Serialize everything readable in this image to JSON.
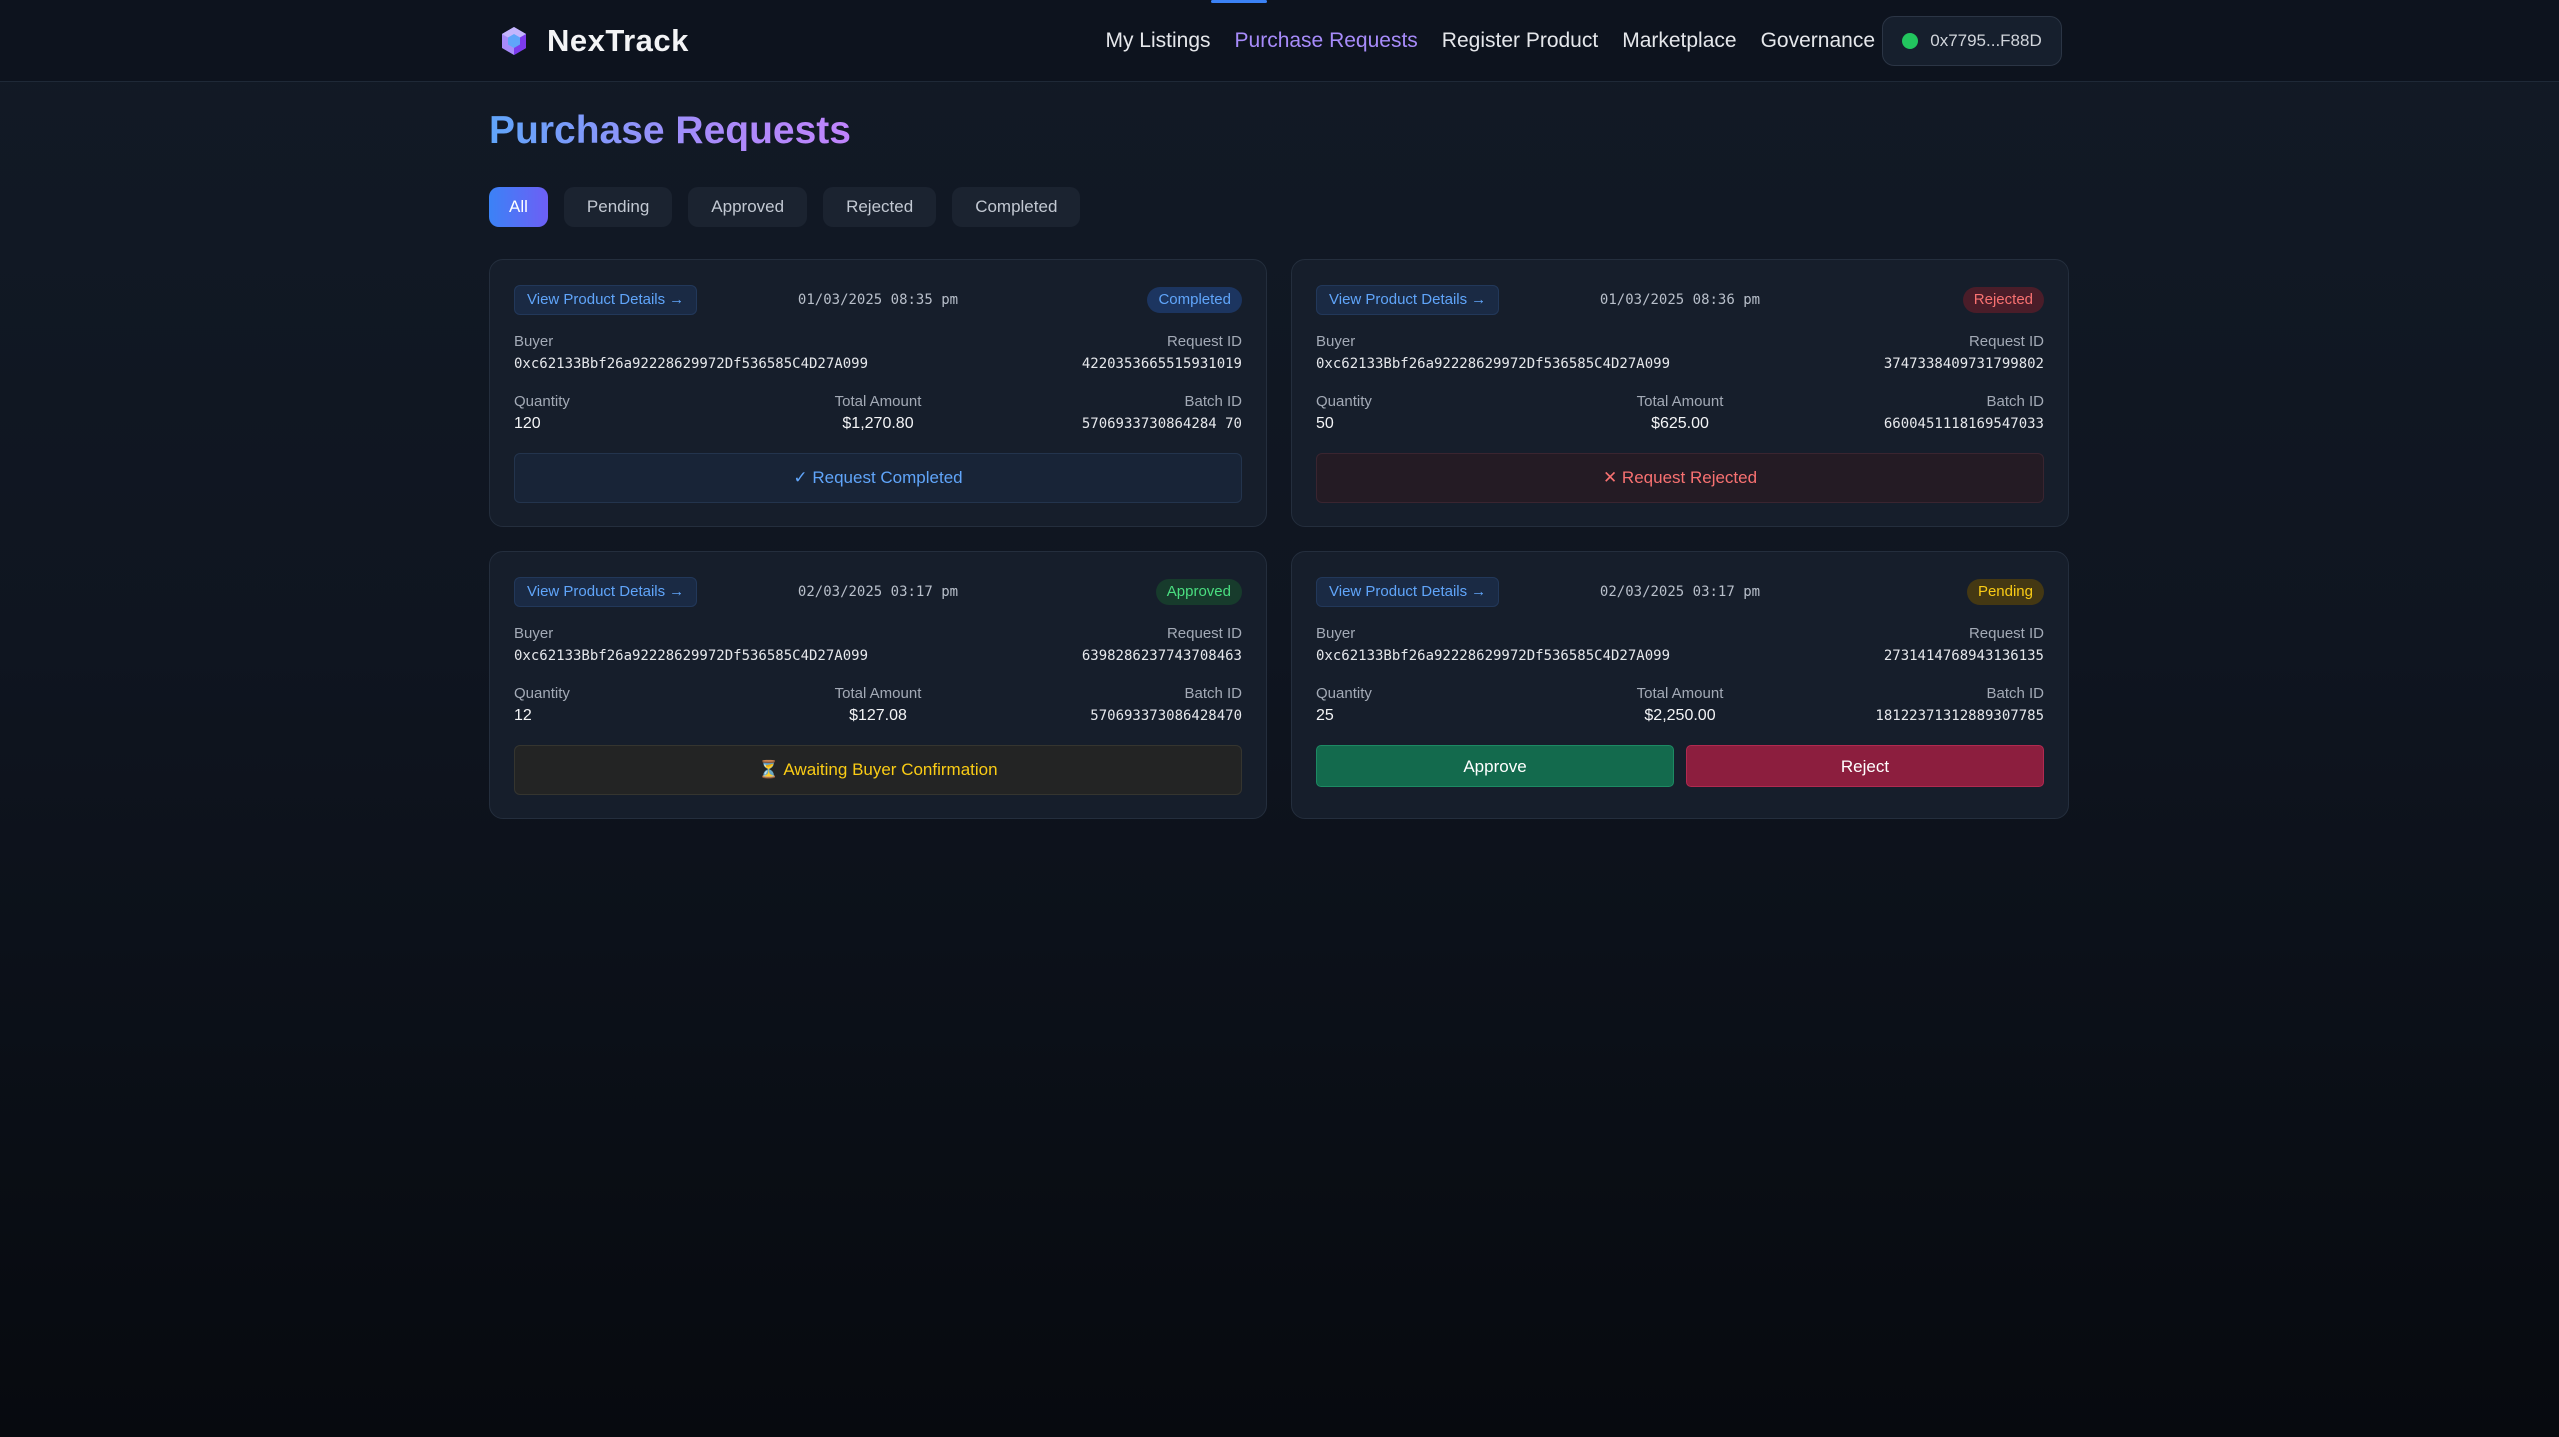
{
  "app": {
    "name": "NexTrack",
    "logo_icon": "cube-icon"
  },
  "nav": {
    "items": [
      {
        "label": "My Listings"
      },
      {
        "label": "Purchase Requests",
        "active": true
      },
      {
        "label": "Register Product"
      },
      {
        "label": "Marketplace"
      },
      {
        "label": "Governance"
      }
    ]
  },
  "wallet": {
    "address": "0x7795...F88D",
    "status_color": "#22c55e"
  },
  "page": {
    "title": "Purchase Requests"
  },
  "filters": [
    "All",
    "Pending",
    "Approved",
    "Rejected",
    "Completed"
  ],
  "labels": {
    "view_details": "View Product Details",
    "buyer": "Buyer",
    "request_id": "Request ID",
    "quantity": "Quantity",
    "total_amount": "Total Amount",
    "batch_id": "Batch ID"
  },
  "requests": [
    {
      "date": "01/03/2025 08:35 pm",
      "status": "Completed",
      "buyer": "0xc62133Bbf26a92228629972Df536585C4D27A099",
      "request_id": "4220353665515931019",
      "quantity": "120",
      "total_amount": "$1,270.80",
      "batch_id": "5706933730864284 70",
      "footer": "Request Completed",
      "footer_icon": "✓"
    },
    {
      "date": "01/03/2025 08:36 pm",
      "status": "Rejected",
      "buyer": "0xc62133Bbf26a92228629972Df536585C4D27A099",
      "request_id": "3747338409731799802",
      "quantity": "50",
      "total_amount": "$625.00",
      "batch_id": "6600451118169547033",
      "footer": "Request Rejected",
      "footer_icon": "✕"
    },
    {
      "date": "02/03/2025 03:17 pm",
      "status": "Approved",
      "buyer": "0xc62133Bbf26a92228629972Df536585C4D27A099",
      "request_id": "6398286237743708463",
      "quantity": "12",
      "total_amount": "$127.08",
      "batch_id": "570693373086428470",
      "footer": "Awaiting Buyer Confirmation",
      "footer_icon": "⏳"
    },
    {
      "date": "02/03/2025 03:17 pm",
      "status": "Pending",
      "buyer": "0xc62133Bbf26a92228629972Df536585C4D27A099",
      "request_id": "2731414768943136135",
      "quantity": "25",
      "total_amount": "$2,250.00",
      "batch_id": "18122371312889307785",
      "approve_label": "Approve",
      "reject_label": "Reject"
    }
  ]
}
